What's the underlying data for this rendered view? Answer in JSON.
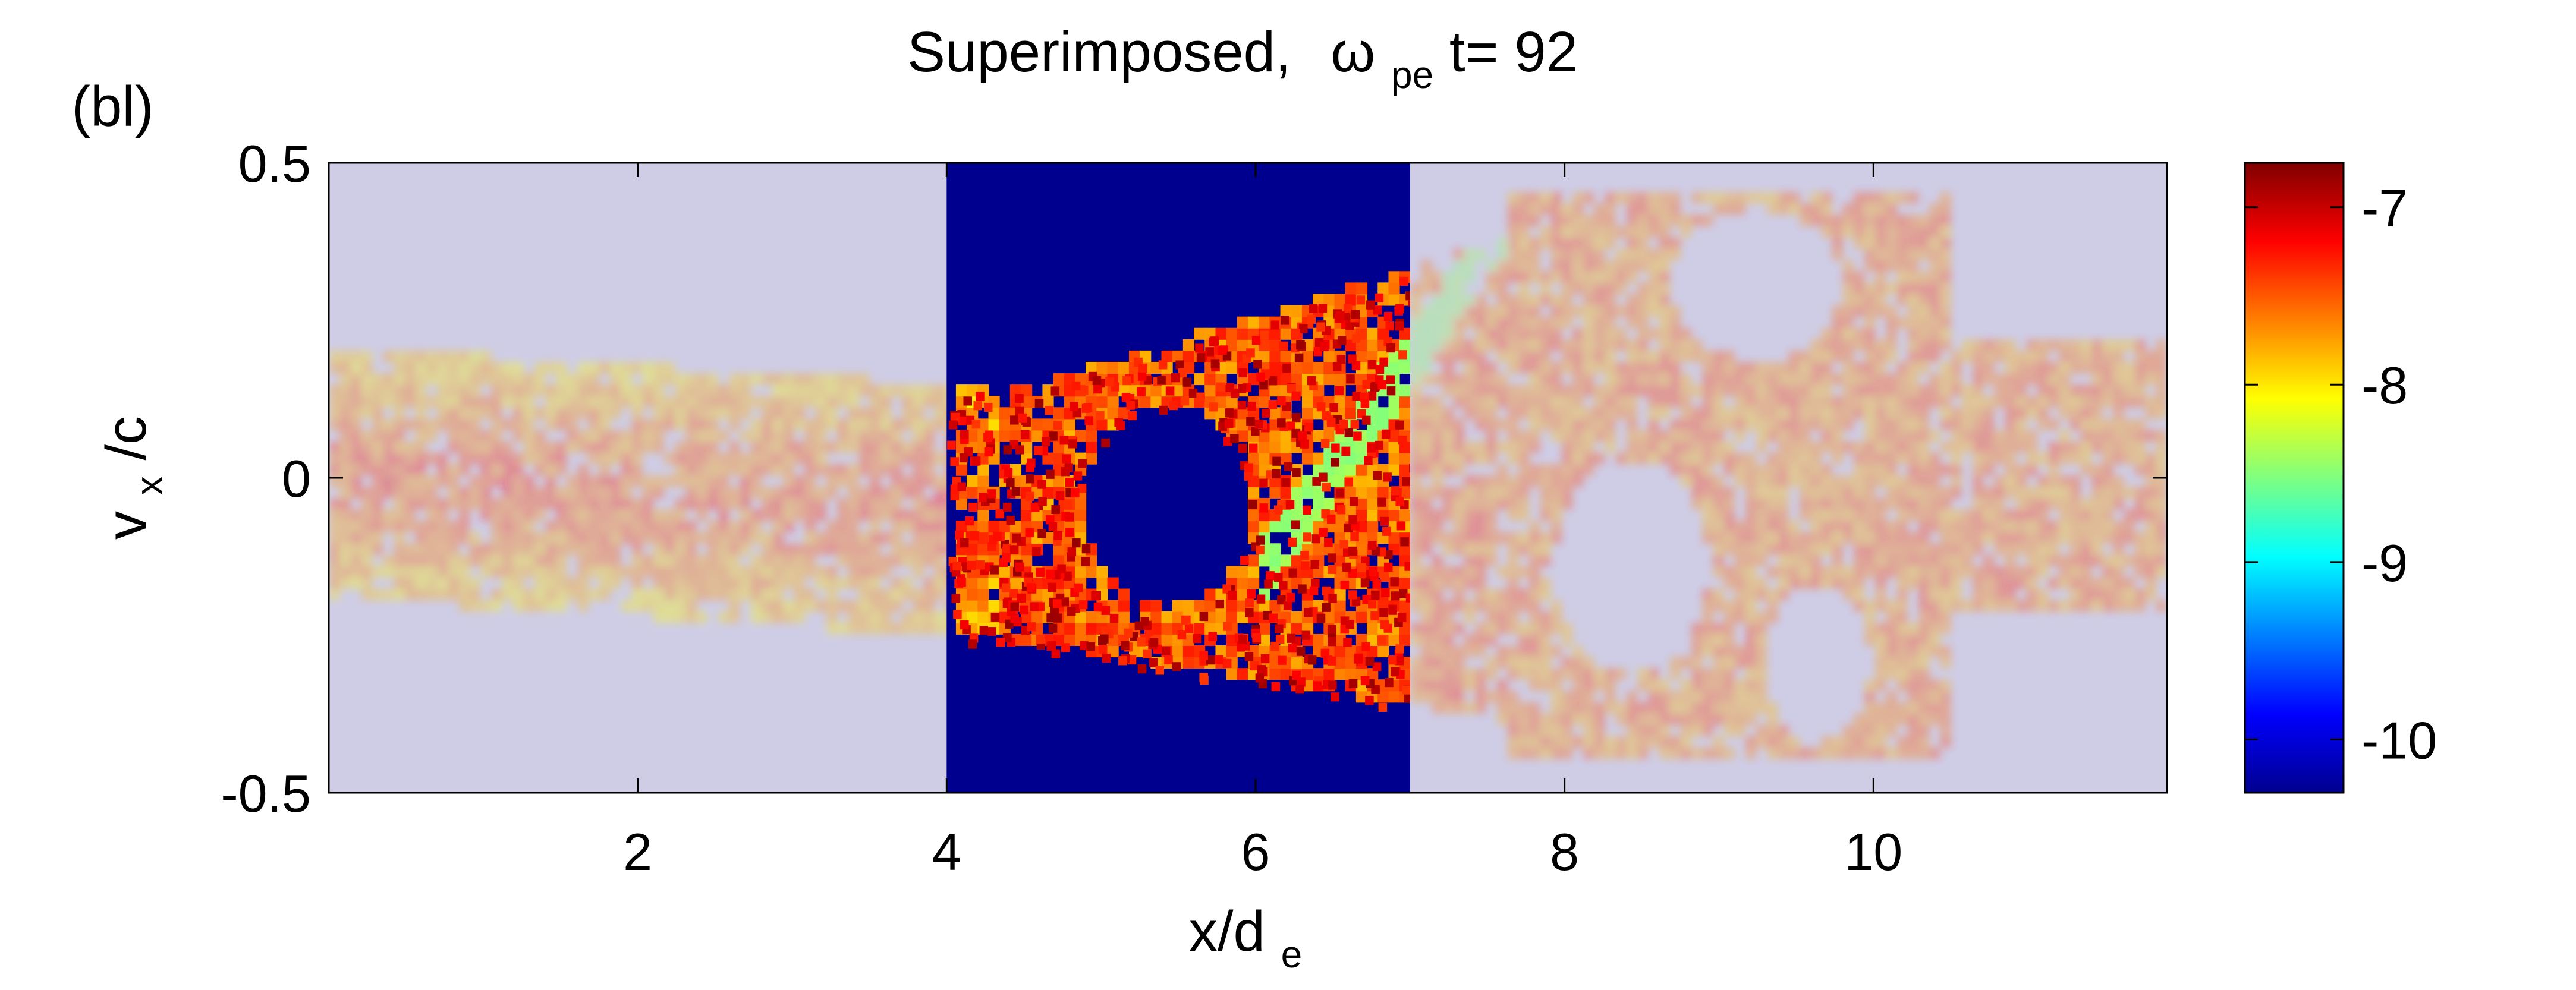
{
  "chart_data": {
    "type": "heatmap",
    "panel_label": "(bl)",
    "title": {
      "prefix": "Superimposed,",
      "omega": "ω",
      "omega_sub": "pe",
      "suffix": "t= 92"
    },
    "xlabel": {
      "main": "x/d",
      "sub": "e"
    },
    "ylabel": {
      "main": "v",
      "sub": "x",
      "rest": "/c"
    },
    "xlim": [
      0,
      11.9
    ],
    "ylim": [
      -0.5,
      0.5
    ],
    "xticks": [
      2,
      4,
      6,
      8,
      10
    ],
    "yticks": [
      {
        "value": 0.5,
        "label": "0.5"
      },
      {
        "value": 0,
        "label": "0"
      },
      {
        "value": -0.5,
        "label": "-0.5"
      }
    ],
    "highlight_region": {
      "x": [
        4,
        7
      ],
      "y": [
        -0.5,
        0.5
      ]
    },
    "colorbar": {
      "colormap": "jet",
      "range": [
        -10.3,
        -6.75
      ],
      "ticks": [
        {
          "value": -7,
          "label": "-7"
        },
        {
          "value": -8,
          "label": "-8"
        },
        {
          "value": -9,
          "label": "-9"
        },
        {
          "value": -10,
          "label": "-10"
        }
      ]
    },
    "background_colors": {
      "faded_empty": "#cfcde6",
      "highlight_empty": "#00008f"
    }
  }
}
